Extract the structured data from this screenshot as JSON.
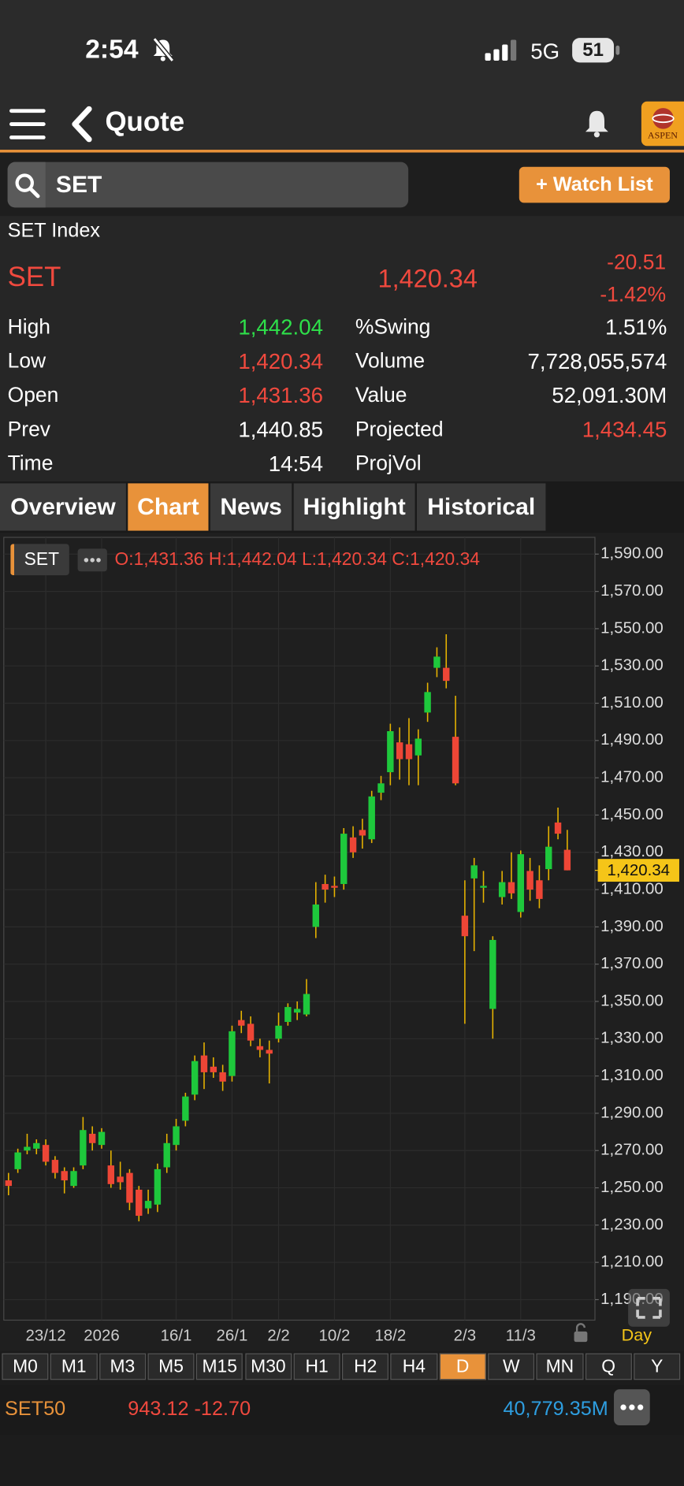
{
  "status_bar": {
    "time": "2:54",
    "network": "5G",
    "battery": "51"
  },
  "header": {
    "title": "Quote",
    "logo": "ASPEN"
  },
  "search": {
    "query": "SET",
    "button": "+ Watch List"
  },
  "quote": {
    "name": "SET Index",
    "symbol": "SET",
    "last": "1,420.34",
    "change": "-20.51",
    "change_pct": "-1.42%",
    "left_stats": [
      {
        "label": "High",
        "value": "1,442.04",
        "color": "#2ee04a"
      },
      {
        "label": "Low",
        "value": "1,420.34",
        "color": "#f0493e"
      },
      {
        "label": "Open",
        "value": "1,431.36",
        "color": "#f0493e"
      },
      {
        "label": "Prev",
        "value": "1,440.85",
        "color": "#ffffff"
      },
      {
        "label": "Time",
        "value": "14:54",
        "color": "#ffffff"
      }
    ],
    "right_stats": [
      {
        "label": "%Swing",
        "value": "1.51%",
        "color": "#ffffff"
      },
      {
        "label": "Volume",
        "value": "7,728,055,574",
        "color": "#ffffff"
      },
      {
        "label": "Value",
        "value": "52,091.30M",
        "color": "#ffffff"
      },
      {
        "label": "Projected",
        "value": "1,434.45",
        "color": "#f0493e"
      },
      {
        "label": "ProjVol"
      }
    ]
  },
  "tabs": {
    "items": [
      "Overview",
      "Chart",
      "News",
      "Highlight",
      "Historical"
    ],
    "active": 1
  },
  "chart_data": {
    "type": "candlestick",
    "symbol": "SET",
    "ohlc_text": "O:1,431.36 H:1,442.04 L:1,420.34 C:1,420.34",
    "interval_label": "Day",
    "up_color": "#1ec83c",
    "down_color": "#ee4636",
    "wick_color": "#e8b400",
    "categories": [
      null,
      null,
      null,
      null,
      "23/12",
      null,
      null,
      null,
      null,
      null,
      "2026",
      null,
      null,
      null,
      null,
      null,
      null,
      null,
      "16/1",
      null,
      null,
      null,
      null,
      null,
      "26/1",
      null,
      null,
      null,
      null,
      "2/2",
      null,
      null,
      null,
      null,
      null,
      "10/2",
      null,
      null,
      null,
      null,
      null,
      "18/2",
      null,
      null,
      null,
      null,
      null,
      null,
      null,
      "2/3",
      null,
      null,
      null,
      null,
      null,
      "11/3",
      null,
      null,
      null,
      null,
      null
    ],
    "open": [
      1254,
      1260,
      1270,
      1271,
      1273,
      1265,
      1259,
      1251,
      1262,
      1279,
      1273,
      1262,
      1256,
      1258,
      1249,
      1239,
      1241,
      1261,
      1273,
      1286,
      1300,
      1321,
      1315,
      1312,
      1310,
      1340,
      1338,
      1326,
      1324,
      1330,
      1339,
      1344,
      1343,
      1390,
      1413,
      1412,
      1413,
      1438,
      1442,
      1437,
      1462,
      1473,
      1489,
      1488,
      1482,
      1505,
      1529,
      1529,
      1492,
      1396,
      1416,
      1411,
      1346,
      1406,
      1414,
      1398,
      1420,
      1415,
      1421,
      1446,
      1431.36
    ],
    "high": [
      1258,
      1271,
      1279,
      1276,
      1276,
      1267,
      1261,
      1261,
      1288,
      1283,
      1282,
      1270,
      1264,
      1260,
      1251,
      1249,
      1263,
      1279,
      1287,
      1301,
      1321,
      1328,
      1320,
      1316,
      1337,
      1345,
      1342,
      1330,
      1329,
      1344,
      1349,
      1350,
      1362,
      1414,
      1418,
      1417,
      1443,
      1444,
      1448,
      1463,
      1471,
      1499,
      1497,
      1502,
      1496,
      1521,
      1540,
      1547,
      1514,
      1415,
      1427,
      1420,
      1385,
      1420,
      1430,
      1431,
      1427,
      1423,
      1444,
      1454,
      1442.04
    ],
    "low": [
      1246,
      1258,
      1268,
      1268,
      1262,
      1255,
      1247,
      1250,
      1260,
      1270,
      1271,
      1250,
      1249,
      1238,
      1232,
      1236,
      1237,
      1258,
      1270,
      1283,
      1297,
      1303,
      1309,
      1302,
      1307,
      1333,
      1326,
      1320,
      1306,
      1328,
      1337,
      1340,
      1342,
      1384,
      1403,
      1406,
      1410,
      1427,
      1432,
      1435,
      1458,
      1466,
      1469,
      1466,
      1466,
      1500,
      1524,
      1518,
      1466,
      1338,
      1377,
      1403,
      1330,
      1402,
      1405,
      1395,
      1404,
      1400,
      1415,
      1437,
      1420.34
    ],
    "close": [
      1251,
      1269,
      1272,
      1274,
      1264,
      1258,
      1254,
      1259,
      1281,
      1274,
      1280,
      1252,
      1253,
      1242,
      1235,
      1243,
      1260,
      1274,
      1283,
      1299,
      1318,
      1312,
      1312,
      1307,
      1334,
      1337,
      1329,
      1324,
      1322,
      1337,
      1347,
      1346,
      1354,
      1402,
      1410,
      1411,
      1440,
      1430,
      1439,
      1460,
      1467,
      1495,
      1480,
      1480,
      1491,
      1516,
      1535,
      1522,
      1467,
      1385,
      1423,
      1412,
      1383,
      1414,
      1408,
      1429,
      1410,
      1405,
      1433,
      1440,
      1420.34
    ],
    "last_price": {
      "value": 1420.34,
      "label": "1,420.34"
    },
    "ylim": [
      1179,
      1599
    ],
    "yticks": [
      {
        "value": 1190,
        "label": "1,190.00"
      },
      {
        "value": 1210,
        "label": "1,210.00"
      },
      {
        "value": 1230,
        "label": "1,230.00"
      },
      {
        "value": 1250,
        "label": "1,250.00"
      },
      {
        "value": 1270,
        "label": "1,270.00"
      },
      {
        "value": 1290,
        "label": "1,290.00"
      },
      {
        "value": 1310,
        "label": "1,310.00"
      },
      {
        "value": 1330,
        "label": "1,330.00"
      },
      {
        "value": 1350,
        "label": "1,350.00"
      },
      {
        "value": 1370,
        "label": "1,370.00"
      },
      {
        "value": 1390,
        "label": "1,390.00"
      },
      {
        "value": 1410,
        "label": "1,410.00"
      },
      {
        "value": 1430,
        "label": "1,430.00"
      },
      {
        "value": 1450,
        "label": "1,450.00"
      },
      {
        "value": 1470,
        "label": "1,470.00"
      },
      {
        "value": 1490,
        "label": "1,490.00"
      },
      {
        "value": 1510,
        "label": "1,510.00"
      },
      {
        "value": 1530,
        "label": "1,530.00"
      },
      {
        "value": 1550,
        "label": "1,550.00"
      },
      {
        "value": 1570,
        "label": "1,570.00"
      },
      {
        "value": 1590,
        "label": "1,590.00"
      }
    ],
    "grid": true
  },
  "timeframes": {
    "items": [
      "M0",
      "M1",
      "M3",
      "M5",
      "M15",
      "M30",
      "H1",
      "H2",
      "H4",
      "D",
      "W",
      "MN",
      "Q",
      "Y"
    ],
    "active": 9
  },
  "footer": {
    "symbol": "SET50",
    "quote": "943.12 -12.70",
    "turnover": "40,779.35M"
  }
}
